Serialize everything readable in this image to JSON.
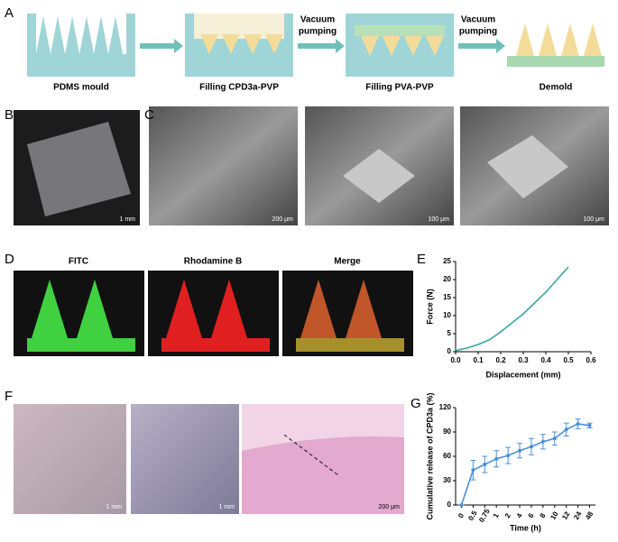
{
  "panels": {
    "letters": [
      "A",
      "B",
      "C",
      "D",
      "E",
      "F",
      "G"
    ],
    "a": {
      "steps": [
        "PDMS mould",
        "Filling CPD3a-PVP",
        "Filling PVA-PVP",
        "Demold"
      ],
      "arrows": [
        {
          "lines": [
            "Vacuum",
            "pumping"
          ]
        },
        {
          "lines": [
            "Vacuum",
            "pumping"
          ]
        }
      ]
    },
    "b": {
      "scale": "1 mm"
    },
    "c": {
      "scales": [
        "200 μm",
        "100 μm",
        "100 μm"
      ]
    },
    "d": {
      "titles": [
        "FITC",
        "Rhodamine B",
        "Merge"
      ]
    },
    "f": {
      "scales": [
        "1 mm",
        "1 mm",
        "200 μm"
      ]
    }
  },
  "chart_data": [
    {
      "type": "line",
      "xlabel": "Displacement (mm)",
      "ylabel": "Force (N)",
      "x": [
        0,
        0.05,
        0.1,
        0.15,
        0.2,
        0.25,
        0.3,
        0.35,
        0.4,
        0.45,
        0.5
      ],
      "series": [
        {
          "color": "#35a99c",
          "values": [
            0.3,
            1,
            2,
            3.3,
            5.5,
            8,
            10.5,
            13.5,
            16.5,
            20,
            23.5
          ]
        }
      ],
      "xlim": [
        0,
        0.6
      ],
      "xticks": [
        {
          "value": 0,
          "label": "0.0"
        },
        0.1,
        0.2,
        0.3,
        0.4,
        0.5,
        0.6
      ],
      "ylim": [
        0,
        25
      ],
      "yticks": [
        0,
        5,
        10,
        15,
        20,
        25
      ]
    },
    {
      "type": "errorline",
      "xlabel": "Time (h)",
      "ylabel": "Cumulative release of CPD3a (%)",
      "categories": [
        "0",
        "0.5",
        "0.75",
        "1",
        "2",
        "4",
        "6",
        "8",
        "10",
        "12",
        "24",
        "48"
      ],
      "series": [
        {
          "color": "#4a8fdc",
          "values": [
            0,
            43,
            50,
            57,
            61,
            67,
            72,
            78,
            82,
            93,
            100,
            98
          ],
          "errors": [
            0,
            12,
            10,
            10,
            10,
            9,
            10,
            9,
            8,
            8,
            6,
            3
          ]
        }
      ],
      "ylim": [
        0,
        120
      ],
      "yticks": [
        0,
        30,
        60,
        90,
        120
      ]
    }
  ]
}
